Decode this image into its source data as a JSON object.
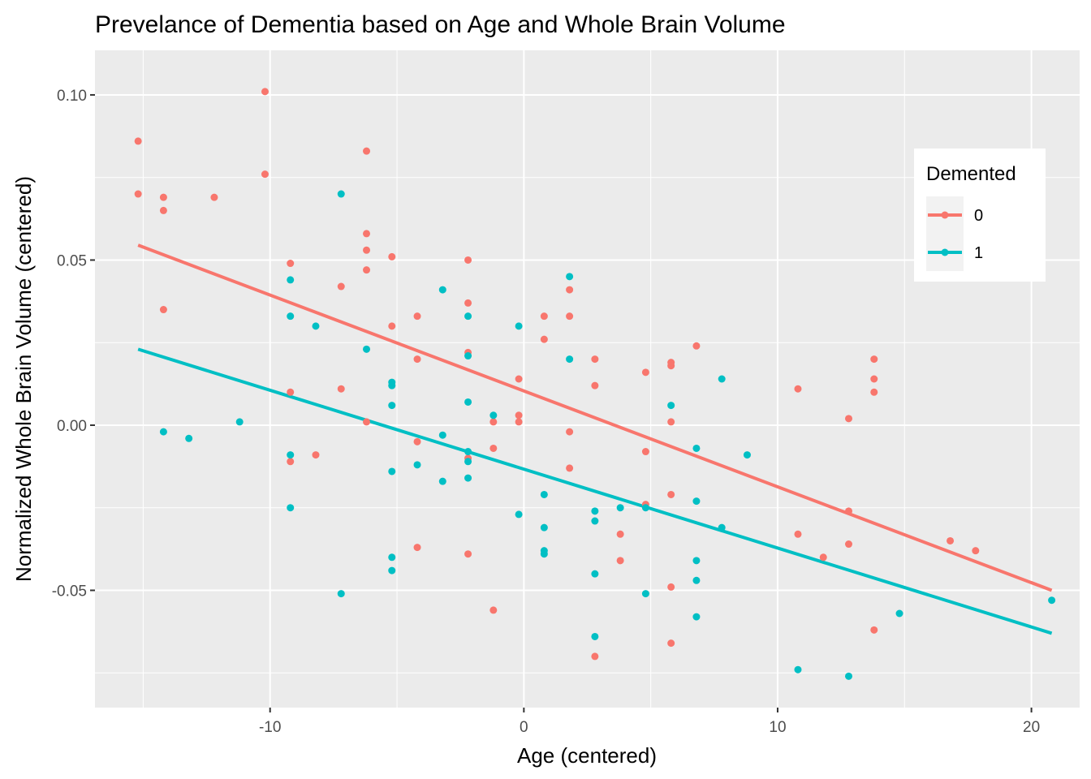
{
  "chart_data": {
    "type": "scatter",
    "title": "Prevelance of Dementia based on Age and Whole Brain Volume",
    "xlabel": "Age (centered)",
    "ylabel": "Normalized Whole Brain Volume (centered)",
    "xlim": [
      -16.9,
      21.9
    ],
    "ylim": [
      -0.0855,
      0.1135
    ],
    "xticks": [
      -10,
      0,
      10,
      20
    ],
    "xtick_labels": [
      "-10",
      "0",
      "10",
      "20"
    ],
    "yticks": [
      -0.05,
      0.0,
      0.05,
      0.1
    ],
    "ytick_labels": [
      "-0.05",
      "0.00",
      "0.05",
      "0.10"
    ],
    "grid": true,
    "legend": {
      "title": "Demented",
      "position": "top-right"
    },
    "series": [
      {
        "name": "0",
        "color": "#F8766D",
        "points": [
          [
            -15.2,
            0.086
          ],
          [
            -15.2,
            0.07
          ],
          [
            -14.2,
            0.069
          ],
          [
            -14.2,
            0.065
          ],
          [
            -14.2,
            0.035
          ],
          [
            -12.2,
            0.069
          ],
          [
            -10.2,
            0.101
          ],
          [
            -10.2,
            0.076
          ],
          [
            -9.2,
            0.049
          ],
          [
            -9.2,
            0.01
          ],
          [
            -9.2,
            -0.011
          ],
          [
            -8.2,
            -0.009
          ],
          [
            -7.2,
            0.042
          ],
          [
            -7.2,
            0.011
          ],
          [
            -6.2,
            0.083
          ],
          [
            -6.2,
            0.058
          ],
          [
            -6.2,
            0.053
          ],
          [
            -6.2,
            0.047
          ],
          [
            -6.2,
            0.001
          ],
          [
            -5.2,
            0.051
          ],
          [
            -5.2,
            0.03
          ],
          [
            -4.2,
            0.033
          ],
          [
            -4.2,
            0.02
          ],
          [
            -4.2,
            -0.005
          ],
          [
            -4.2,
            -0.037
          ],
          [
            -2.2,
            0.05
          ],
          [
            -2.2,
            0.037
          ],
          [
            -2.2,
            0.022
          ],
          [
            -2.2,
            -0.01
          ],
          [
            -2.2,
            -0.039
          ],
          [
            -1.2,
            0.001
          ],
          [
            -1.2,
            -0.007
          ],
          [
            -1.2,
            -0.056
          ],
          [
            -0.2,
            0.014
          ],
          [
            -0.2,
            0.003
          ],
          [
            -0.2,
            0.001
          ],
          [
            0.8,
            0.033
          ],
          [
            0.8,
            0.026
          ],
          [
            1.8,
            0.041
          ],
          [
            1.8,
            0.033
          ],
          [
            1.8,
            -0.002
          ],
          [
            1.8,
            -0.013
          ],
          [
            2.8,
            0.02
          ],
          [
            2.8,
            0.012
          ],
          [
            2.8,
            -0.07
          ],
          [
            3.8,
            -0.033
          ],
          [
            3.8,
            -0.041
          ],
          [
            4.8,
            0.016
          ],
          [
            4.8,
            -0.008
          ],
          [
            4.8,
            -0.024
          ],
          [
            5.8,
            0.019
          ],
          [
            5.8,
            0.018
          ],
          [
            5.8,
            0.001
          ],
          [
            5.8,
            -0.021
          ],
          [
            5.8,
            -0.049
          ],
          [
            5.8,
            -0.066
          ],
          [
            6.8,
            0.024
          ],
          [
            10.8,
            0.011
          ],
          [
            10.8,
            -0.033
          ],
          [
            11.8,
            -0.04
          ],
          [
            12.8,
            0.002
          ],
          [
            12.8,
            -0.026
          ],
          [
            12.8,
            -0.036
          ],
          [
            13.8,
            0.02
          ],
          [
            13.8,
            0.014
          ],
          [
            13.8,
            0.01
          ],
          [
            13.8,
            -0.062
          ],
          [
            16.8,
            -0.035
          ],
          [
            17.8,
            -0.038
          ]
        ],
        "fit": {
          "x": [
            -15.2,
            20.8
          ],
          "y": [
            0.0545,
            -0.05
          ]
        }
      },
      {
        "name": "1",
        "color": "#00BFC4",
        "points": [
          [
            -14.2,
            -0.002
          ],
          [
            -13.2,
            -0.004
          ],
          [
            -11.2,
            0.001
          ],
          [
            -9.2,
            0.044
          ],
          [
            -9.2,
            0.033
          ],
          [
            -9.2,
            -0.009
          ],
          [
            -9.2,
            -0.025
          ],
          [
            -8.2,
            0.03
          ],
          [
            -7.2,
            0.07
          ],
          [
            -7.2,
            -0.051
          ],
          [
            -6.2,
            0.023
          ],
          [
            -5.2,
            0.013
          ],
          [
            -5.2,
            0.012
          ],
          [
            -5.2,
            0.006
          ],
          [
            -5.2,
            -0.014
          ],
          [
            -5.2,
            -0.04
          ],
          [
            -5.2,
            -0.044
          ],
          [
            -4.2,
            -0.012
          ],
          [
            -3.2,
            0.041
          ],
          [
            -3.2,
            -0.003
          ],
          [
            -3.2,
            -0.017
          ],
          [
            -2.2,
            0.033
          ],
          [
            -2.2,
            0.021
          ],
          [
            -2.2,
            0.007
          ],
          [
            -2.2,
            -0.008
          ],
          [
            -2.2,
            -0.011
          ],
          [
            -2.2,
            -0.016
          ],
          [
            -1.2,
            0.003
          ],
          [
            -0.2,
            0.03
          ],
          [
            -0.2,
            -0.027
          ],
          [
            0.8,
            -0.021
          ],
          [
            0.8,
            -0.031
          ],
          [
            0.8,
            -0.038
          ],
          [
            0.8,
            -0.039
          ],
          [
            1.8,
            0.045
          ],
          [
            1.8,
            0.02
          ],
          [
            2.8,
            -0.026
          ],
          [
            2.8,
            -0.029
          ],
          [
            2.8,
            -0.045
          ],
          [
            2.8,
            -0.064
          ],
          [
            3.8,
            -0.025
          ],
          [
            4.8,
            -0.025
          ],
          [
            4.8,
            -0.051
          ],
          [
            5.8,
            0.006
          ],
          [
            6.8,
            -0.007
          ],
          [
            6.8,
            -0.023
          ],
          [
            6.8,
            -0.041
          ],
          [
            6.8,
            -0.047
          ],
          [
            6.8,
            -0.058
          ],
          [
            7.8,
            0.014
          ],
          [
            7.8,
            -0.031
          ],
          [
            8.8,
            -0.009
          ],
          [
            10.8,
            -0.074
          ],
          [
            12.8,
            -0.076
          ],
          [
            14.8,
            -0.057
          ],
          [
            20.8,
            -0.053
          ]
        ],
        "fit": {
          "x": [
            -15.2,
            20.8
          ],
          "y": [
            0.023,
            -0.063
          ]
        }
      }
    ]
  }
}
